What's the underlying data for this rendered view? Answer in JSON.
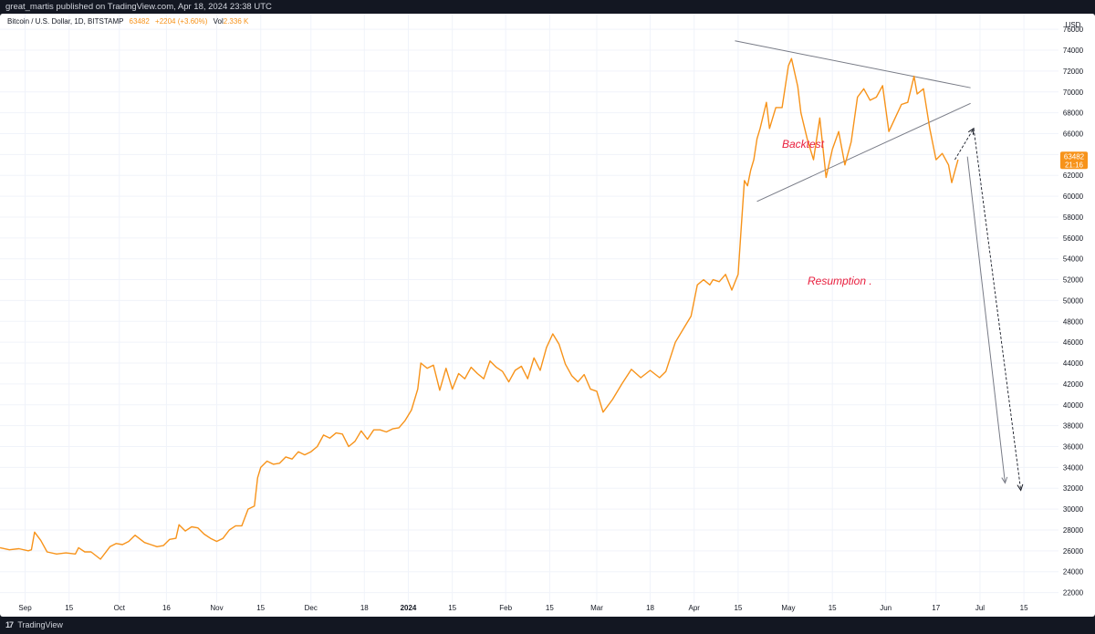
{
  "header": {
    "published": "great_martis published on TradingView.com, Apr 18, 2024 23:38 UTC"
  },
  "legend": {
    "symbol": "Bitcoin / U.S. Dollar, 1D, BITSTAMP",
    "last": "63482",
    "change": "+2204 (+3.60%)",
    "vol_label": "Vol",
    "vol_value": "2.336 K"
  },
  "price_badge": {
    "price": "63482",
    "countdown": "21:16",
    "color": "#f7931a"
  },
  "footer": {
    "brand": "TradingView",
    "logo_icon": "tradingview-logo-icon"
  },
  "chart_data": {
    "type": "line",
    "currency": "USD",
    "line_color": "#f7931a",
    "ylim": [
      21000,
      77500
    ],
    "y_ticks": [
      22000,
      24000,
      26000,
      28000,
      30000,
      32000,
      34000,
      36000,
      38000,
      40000,
      42000,
      44000,
      46000,
      48000,
      50000,
      52000,
      54000,
      56000,
      58000,
      60000,
      62000,
      64000,
      66000,
      68000,
      70000,
      72000,
      74000,
      76000
    ],
    "x_start": "2023-08-24",
    "x_end": "2024-07-26",
    "x_ticks": [
      {
        "label": "Sep",
        "date": "2023-09-01"
      },
      {
        "label": "15",
        "date": "2023-09-15"
      },
      {
        "label": "Oct",
        "date": "2023-10-01"
      },
      {
        "label": "16",
        "date": "2023-10-16"
      },
      {
        "label": "Nov",
        "date": "2023-11-01"
      },
      {
        "label": "15",
        "date": "2023-11-15"
      },
      {
        "label": "Dec",
        "date": "2023-12-01"
      },
      {
        "label": "18",
        "date": "2023-12-18"
      },
      {
        "label": "2024",
        "date": "2024-01-01",
        "bold": true
      },
      {
        "label": "15",
        "date": "2024-01-15"
      },
      {
        "label": "Feb",
        "date": "2024-02-01"
      },
      {
        "label": "15",
        "date": "2024-02-15"
      },
      {
        "label": "Mar",
        "date": "2024-03-01"
      },
      {
        "label": "18",
        "date": "2024-03-18"
      },
      {
        "label": "Apr",
        "date": "2024-04-01"
      },
      {
        "label": "15",
        "date": "2024-04-15"
      },
      {
        "label": "May",
        "date": "2024-05-01"
      },
      {
        "label": "15",
        "date": "2024-05-15"
      },
      {
        "label": "Jun",
        "date": "2024-06-01"
      },
      {
        "label": "17",
        "date": "2024-06-17"
      },
      {
        "label": "Jul",
        "date": "2024-07-01"
      },
      {
        "label": "15",
        "date": "2024-07-15"
      }
    ],
    "series": [
      {
        "points": [
          [
            "2023-08-24",
            26300
          ],
          [
            "2023-08-27",
            26100
          ],
          [
            "2023-08-30",
            26200
          ],
          [
            "2023-09-02",
            26000
          ],
          [
            "2023-09-03",
            26100
          ],
          [
            "2023-09-04",
            27800
          ],
          [
            "2023-09-06",
            27000
          ],
          [
            "2023-09-08",
            25900
          ],
          [
            "2023-09-11",
            25700
          ],
          [
            "2023-09-14",
            25800
          ],
          [
            "2023-09-17",
            25700
          ],
          [
            "2023-09-18",
            26300
          ],
          [
            "2023-09-20",
            25900
          ],
          [
            "2023-09-22",
            25900
          ],
          [
            "2023-09-25",
            25200
          ],
          [
            "2023-09-28",
            26400
          ],
          [
            "2023-09-30",
            26700
          ],
          [
            "2023-10-02",
            26600
          ],
          [
            "2023-10-04",
            26900
          ],
          [
            "2023-10-06",
            27500
          ],
          [
            "2023-10-09",
            26800
          ],
          [
            "2023-10-11",
            26600
          ],
          [
            "2023-10-13",
            26400
          ],
          [
            "2023-10-15",
            26500
          ],
          [
            "2023-10-17",
            27100
          ],
          [
            "2023-10-19",
            27200
          ],
          [
            "2023-10-20",
            28500
          ],
          [
            "2023-10-22",
            27900
          ],
          [
            "2023-10-24",
            28300
          ],
          [
            "2023-10-26",
            28200
          ],
          [
            "2023-10-28",
            27600
          ],
          [
            "2023-10-30",
            27200
          ],
          [
            "2023-11-01",
            26900
          ],
          [
            "2023-11-03",
            27200
          ],
          [
            "2023-11-05",
            28000
          ],
          [
            "2023-11-07",
            28400
          ],
          [
            "2023-11-09",
            28400
          ],
          [
            "2023-11-11",
            30000
          ],
          [
            "2023-11-13",
            30300
          ],
          [
            "2023-11-14",
            33000
          ],
          [
            "2023-11-15",
            34000
          ],
          [
            "2023-11-17",
            34600
          ],
          [
            "2023-11-19",
            34300
          ],
          [
            "2023-11-21",
            34400
          ],
          [
            "2023-11-23",
            35000
          ],
          [
            "2023-11-25",
            34800
          ],
          [
            "2023-11-27",
            35500
          ],
          [
            "2023-11-29",
            35200
          ],
          [
            "2023-12-01",
            35500
          ],
          [
            "2023-12-03",
            36000
          ],
          [
            "2023-12-05",
            37100
          ],
          [
            "2023-12-07",
            36800
          ],
          [
            "2023-12-09",
            37300
          ],
          [
            "2023-12-11",
            37200
          ],
          [
            "2023-12-13",
            36000
          ],
          [
            "2023-12-15",
            36500
          ],
          [
            "2023-12-17",
            37500
          ],
          [
            "2023-12-19",
            36700
          ],
          [
            "2023-12-21",
            37600
          ],
          [
            "2023-12-23",
            37600
          ],
          [
            "2023-12-25",
            37400
          ],
          [
            "2023-12-27",
            37700
          ],
          [
            "2023-12-29",
            37800
          ],
          [
            "2023-12-31",
            38500
          ],
          [
            "2024-01-02",
            39500
          ],
          [
            "2024-01-04",
            41500
          ],
          [
            "2024-01-05",
            44000
          ],
          [
            "2024-01-07",
            43500
          ],
          [
            "2024-01-09",
            43800
          ],
          [
            "2024-01-11",
            41400
          ],
          [
            "2024-01-13",
            43500
          ],
          [
            "2024-01-15",
            41500
          ],
          [
            "2024-01-17",
            43000
          ],
          [
            "2024-01-19",
            42500
          ],
          [
            "2024-01-21",
            43600
          ],
          [
            "2024-01-23",
            43000
          ],
          [
            "2024-01-25",
            42500
          ],
          [
            "2024-01-27",
            44200
          ],
          [
            "2024-01-29",
            43600
          ],
          [
            "2024-01-31",
            43200
          ],
          [
            "2024-02-02",
            42200
          ],
          [
            "2024-02-04",
            43300
          ],
          [
            "2024-02-06",
            43700
          ],
          [
            "2024-02-08",
            42500
          ],
          [
            "2024-02-10",
            44500
          ],
          [
            "2024-02-12",
            43300
          ],
          [
            "2024-02-14",
            45500
          ],
          [
            "2024-02-16",
            46800
          ],
          [
            "2024-02-18",
            45800
          ],
          [
            "2024-02-20",
            43900
          ],
          [
            "2024-02-22",
            42800
          ],
          [
            "2024-02-24",
            42200
          ],
          [
            "2024-02-26",
            42900
          ],
          [
            "2024-02-28",
            41500
          ],
          [
            "2024-03-01",
            41300
          ],
          [
            "2024-03-03",
            39300
          ],
          [
            "2024-03-06",
            40500
          ],
          [
            "2024-03-09",
            42000
          ],
          [
            "2024-03-12",
            43400
          ],
          [
            "2024-03-15",
            42600
          ],
          [
            "2024-03-18",
            43300
          ],
          [
            "2024-03-21",
            42600
          ],
          [
            "2024-03-23",
            43200
          ],
          [
            "2024-03-26",
            46000
          ],
          [
            "2024-03-29",
            47500
          ],
          [
            "2024-03-31",
            48500
          ],
          [
            "2024-04-02",
            51500
          ],
          [
            "2024-04-04",
            52000
          ],
          [
            "2024-04-06",
            51500
          ],
          [
            "2024-04-07",
            52000
          ],
          [
            "2024-04-09",
            51800
          ],
          [
            "2024-04-11",
            52500
          ],
          [
            "2024-04-13",
            51000
          ],
          [
            "2024-04-15",
            52500
          ],
          [
            "2024-04-16",
            57000
          ],
          [
            "2024-04-17",
            61500
          ],
          [
            "2024-04-18",
            61000
          ],
          [
            "2024-04-19",
            62500
          ],
          [
            "2024-04-20",
            63500
          ],
          [
            "2024-04-21",
            65500
          ],
          [
            "2024-04-22",
            66500
          ],
          [
            "2024-04-24",
            69000
          ],
          [
            "2024-04-25",
            66500
          ],
          [
            "2024-04-27",
            68500
          ],
          [
            "2024-04-29",
            68500
          ],
          [
            "2024-05-01",
            72500
          ],
          [
            "2024-05-02",
            73200
          ],
          [
            "2024-05-04",
            70500
          ],
          [
            "2024-05-05",
            68000
          ],
          [
            "2024-05-07",
            65500
          ],
          [
            "2024-05-09",
            63500
          ],
          [
            "2024-05-11",
            67500
          ],
          [
            "2024-05-13",
            61800
          ],
          [
            "2024-05-15",
            64500
          ],
          [
            "2024-05-17",
            66200
          ],
          [
            "2024-05-19",
            63000
          ],
          [
            "2024-05-21",
            65200
          ],
          [
            "2024-05-23",
            69500
          ],
          [
            "2024-05-25",
            70300
          ],
          [
            "2024-05-27",
            69200
          ],
          [
            "2024-05-29",
            69500
          ],
          [
            "2024-05-31",
            70600
          ],
          [
            "2024-06-02",
            66200
          ],
          [
            "2024-06-04",
            67500
          ],
          [
            "2024-06-06",
            68800
          ],
          [
            "2024-06-08",
            69000
          ],
          [
            "2024-06-10",
            71500
          ],
          [
            "2024-06-11",
            69800
          ],
          [
            "2024-06-13",
            70300
          ],
          [
            "2024-06-15",
            66500
          ],
          [
            "2024-06-17",
            63500
          ],
          [
            "2024-06-19",
            64100
          ],
          [
            "2024-06-21",
            63000
          ],
          [
            "2024-06-22",
            61300
          ],
          [
            "2024-06-24",
            63500
          ]
        ]
      }
    ]
  },
  "drawings": {
    "line_color": "#787b86",
    "annotation_color": "#e91e3d",
    "backtest_label": "Backtest",
    "resumption_label": "Resumption ."
  }
}
